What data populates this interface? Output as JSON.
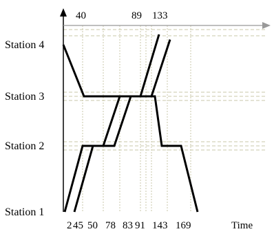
{
  "chart_data": {
    "type": "line",
    "xlabel": "Time",
    "ylabel": "",
    "y_categories": [
      "Station 1",
      "Station 2",
      "Station 3",
      "Station 4"
    ],
    "bottom_tick_labels": [
      "2",
      "45",
      "50",
      "78",
      "83",
      "91",
      "143",
      "169"
    ],
    "top_tick_labels": [
      "40",
      "89",
      "133"
    ],
    "series": [
      {
        "points": [
          {
            "x": 0,
            "y": 4
          },
          {
            "x": 30,
            "y": 3
          },
          {
            "x": 133,
            "y": 3
          },
          {
            "x": 143,
            "y": 2
          },
          {
            "x": 171,
            "y": 2
          },
          {
            "x": 195,
            "y": 1
          }
        ]
      },
      {
        "points": [
          {
            "x": 2,
            "y": 1
          },
          {
            "x": 28,
            "y": 2
          },
          {
            "x": 58,
            "y": 2
          },
          {
            "x": 82,
            "y": 3
          },
          {
            "x": 112,
            "y": 3
          },
          {
            "x": 139,
            "y": 4.2
          }
        ]
      },
      {
        "points": [
          {
            "x": 16,
            "y": 1
          },
          {
            "x": 43,
            "y": 2
          },
          {
            "x": 74,
            "y": 2
          },
          {
            "x": 98,
            "y": 3
          },
          {
            "x": 128,
            "y": 3
          },
          {
            "x": 155,
            "y": 4.1
          }
        ]
      }
    ],
    "grid": "dashed reference lines at station levels and vertical dotted guides at event times",
    "colors": {
      "line": "#000000",
      "guide": "#c9c7a8",
      "axis": "#000000",
      "top_axis": "#999999"
    }
  }
}
